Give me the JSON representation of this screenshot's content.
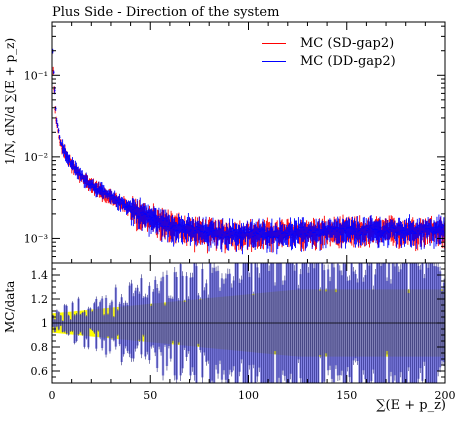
{
  "title": "Plus Side - Direction of the system",
  "ylabel_top": "1/N, dN/d ∑(E + p_z)",
  "ylabel_bottom": "MC/data",
  "xlabel": "∑(E + p_z)",
  "legend": [
    {
      "name": "MC (SD-gap2)",
      "color": "#ff0000"
    },
    {
      "name": "MC (DD-gap2)",
      "color": "#0000ff"
    }
  ],
  "top_yticks": [
    "10⁻³",
    "10⁻²",
    "10⁻¹"
  ],
  "bottom_yticks": [
    "0.6",
    "0.8",
    "1",
    "1.2",
    "1.4"
  ],
  "xticks": [
    "0",
    "50",
    "100",
    "150",
    "200"
  ],
  "chart_data": {
    "type": "line",
    "x": {
      "range": [
        0,
        200
      ],
      "label": "∑(E + p_z)"
    },
    "top": {
      "yscale": "log",
      "ylim": [
        0.0005,
        0.45
      ],
      "reference_points_x": [
        0,
        2,
        4,
        6,
        10,
        15,
        20,
        30,
        40,
        50,
        60,
        70,
        80,
        100,
        150,
        200
      ],
      "reference_points_y": [
        0.25,
        0.03,
        0.016,
        0.012,
        0.008,
        0.0058,
        0.0046,
        0.0032,
        0.0024,
        0.0018,
        0.0015,
        0.0013,
        0.0012,
        0.00115,
        0.00125,
        0.0013
      ],
      "series": [
        {
          "name": "MC (SD-gap2)",
          "color": "#ff0000"
        },
        {
          "name": "MC (DD-gap2)",
          "color": "#0000ff"
        }
      ]
    },
    "ratio": {
      "ylim": [
        0.5,
        1.5
      ],
      "band_color": "#ffff00",
      "band_half_width_start": 0.08,
      "band_half_width_end": 0.28,
      "series_color": "#0000ff"
    }
  }
}
